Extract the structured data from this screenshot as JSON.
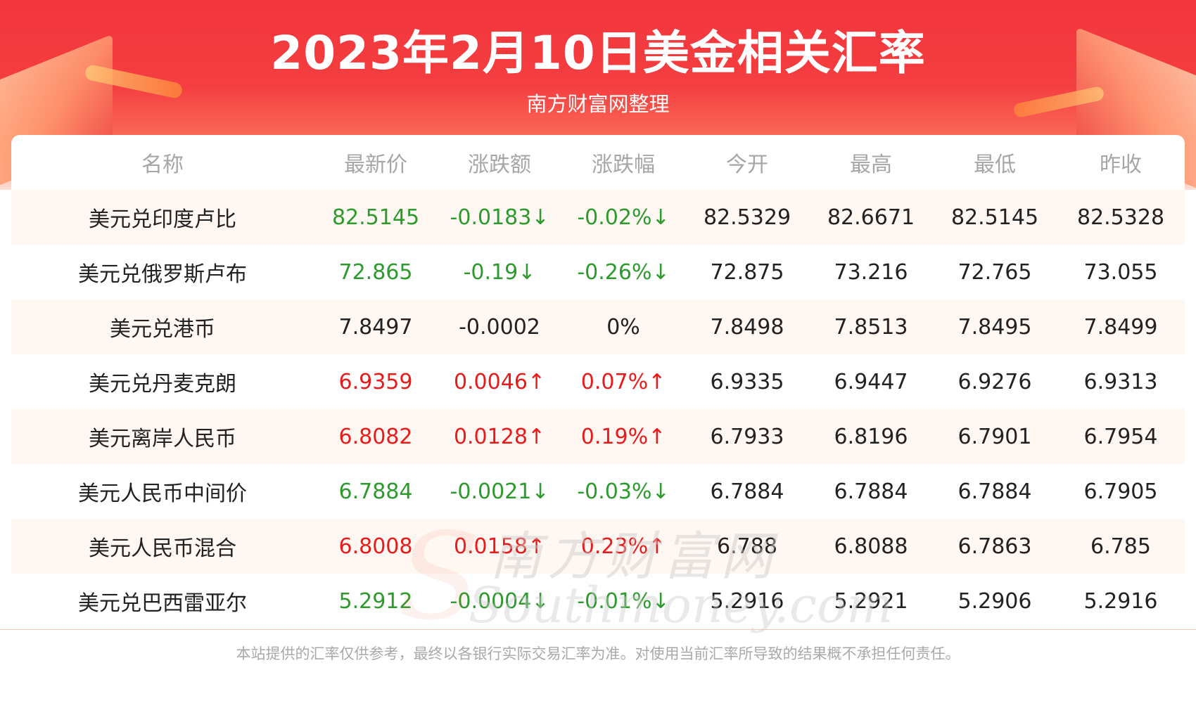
{
  "header": {
    "title": "2023年2月10日美金相关汇率",
    "subtitle": "南方财富网整理"
  },
  "watermark": {
    "cn": "南方财富网",
    "en": "Southmoney.com"
  },
  "colors": {
    "up": "#e81b1b",
    "down": "#2c9a2c",
    "header_red": "#f2363c"
  },
  "table": {
    "columns": [
      "名称",
      "最新价",
      "涨跌额",
      "涨跌幅",
      "今开",
      "最高",
      "最低",
      "昨收"
    ],
    "rows": [
      {
        "name": "美元兑印度卢比",
        "trend": "down",
        "latest": "82.5145",
        "change": "-0.0183↓",
        "pct": "-0.02%↓",
        "open": "82.5329",
        "high": "82.6671",
        "low": "82.5145",
        "prev": "82.5328"
      },
      {
        "name": "美元兑俄罗斯卢布",
        "trend": "down",
        "latest": "72.865",
        "change": "-0.19↓",
        "pct": "-0.26%↓",
        "open": "72.875",
        "high": "73.216",
        "low": "72.765",
        "prev": "73.055"
      },
      {
        "name": "美元兑港币",
        "trend": "flat",
        "latest": "7.8497",
        "change": "-0.0002",
        "pct": "0%",
        "open": "7.8498",
        "high": "7.8513",
        "low": "7.8495",
        "prev": "7.8499"
      },
      {
        "name": "美元兑丹麦克朗",
        "trend": "up",
        "latest": "6.9359",
        "change": "0.0046↑",
        "pct": "0.07%↑",
        "open": "6.9335",
        "high": "6.9447",
        "low": "6.9276",
        "prev": "6.9313"
      },
      {
        "name": "美元离岸人民币",
        "trend": "up",
        "latest": "6.8082",
        "change": "0.0128↑",
        "pct": "0.19%↑",
        "open": "6.7933",
        "high": "6.8196",
        "low": "6.7901",
        "prev": "6.7954"
      },
      {
        "name": "美元人民币中间价",
        "trend": "down",
        "latest": "6.7884",
        "change": "-0.0021↓",
        "pct": "-0.03%↓",
        "open": "6.7884",
        "high": "6.7884",
        "low": "6.7884",
        "prev": "6.7905"
      },
      {
        "name": "美元人民币混合",
        "trend": "up",
        "latest": "6.8008",
        "change": "0.0158↑",
        "pct": "0.23%↑",
        "open": "6.788",
        "high": "6.8088",
        "low": "6.7863",
        "prev": "6.785"
      },
      {
        "name": "美元兑巴西雷亚尔",
        "trend": "down",
        "latest": "5.2912",
        "change": "-0.0004↓",
        "pct": "-0.01%↓",
        "open": "5.2916",
        "high": "5.2921",
        "low": "5.2906",
        "prev": "5.2916"
      }
    ]
  },
  "footer": {
    "disclaimer": "本站提供的汇率仅供参考，最终以各银行实际交易汇率为准。对使用当前汇率所导致的结果概不承担任何责任。"
  }
}
